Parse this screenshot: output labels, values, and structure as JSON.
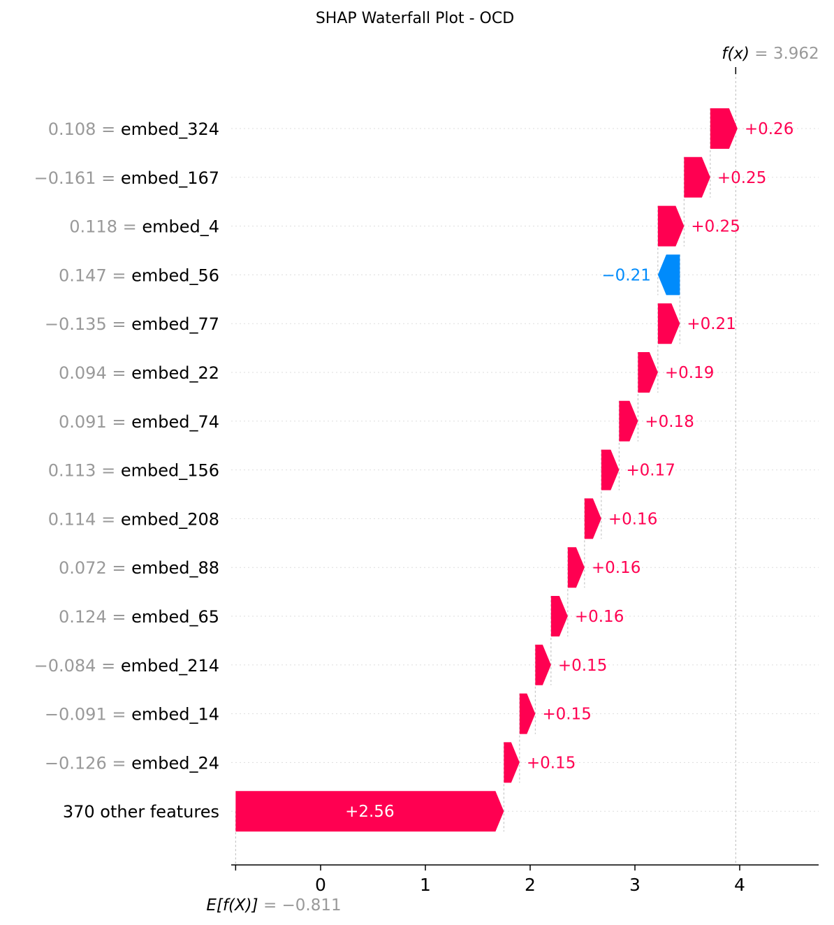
{
  "chart_data": {
    "type": "waterfall",
    "title": "SHAP Waterfall Plot - OCD",
    "base_value": -0.811,
    "final_value": 3.962,
    "base_label_prefix": "E[f(X)]",
    "base_label_value": "= −0.811",
    "final_label_prefix": "f(x)",
    "final_label_value": "= 3.962",
    "xlim": [
      -0.85,
      4.75
    ],
    "x_ticks": [
      0,
      1,
      2,
      3,
      4
    ],
    "x_tick_labels": [
      "0",
      "1",
      "2",
      "3",
      "4"
    ],
    "grid": "dotted rows",
    "colors": {
      "positive": "#ff0051",
      "negative": "#008bfb",
      "muted": "#999999"
    },
    "features": [
      {
        "value_text": "0.108",
        "name": "embed_324",
        "shap": 0.26,
        "label": "+0.26"
      },
      {
        "value_text": "−0.161",
        "name": "embed_167",
        "shap": 0.25,
        "label": "+0.25"
      },
      {
        "value_text": "0.118",
        "name": "embed_4",
        "shap": 0.25,
        "label": "+0.25"
      },
      {
        "value_text": "0.147",
        "name": "embed_56",
        "shap": -0.21,
        "label": "−0.21"
      },
      {
        "value_text": "−0.135",
        "name": "embed_77",
        "shap": 0.21,
        "label": "+0.21"
      },
      {
        "value_text": "0.094",
        "name": "embed_22",
        "shap": 0.19,
        "label": "+0.19"
      },
      {
        "value_text": "0.091",
        "name": "embed_74",
        "shap": 0.18,
        "label": "+0.18"
      },
      {
        "value_text": "0.113",
        "name": "embed_156",
        "shap": 0.17,
        "label": "+0.17"
      },
      {
        "value_text": "0.114",
        "name": "embed_208",
        "shap": 0.16,
        "label": "+0.16"
      },
      {
        "value_text": "0.072",
        "name": "embed_88",
        "shap": 0.16,
        "label": "+0.16"
      },
      {
        "value_text": "0.124",
        "name": "embed_65",
        "shap": 0.16,
        "label": "+0.16"
      },
      {
        "value_text": "−0.084",
        "name": "embed_214",
        "shap": 0.15,
        "label": "+0.15"
      },
      {
        "value_text": "−0.091",
        "name": "embed_14",
        "shap": 0.15,
        "label": "+0.15"
      },
      {
        "value_text": "−0.126",
        "name": "embed_24",
        "shap": 0.15,
        "label": "+0.15"
      },
      {
        "value_text": "",
        "name": "370 other features",
        "shap": 2.56,
        "label": "+2.56"
      }
    ]
  }
}
